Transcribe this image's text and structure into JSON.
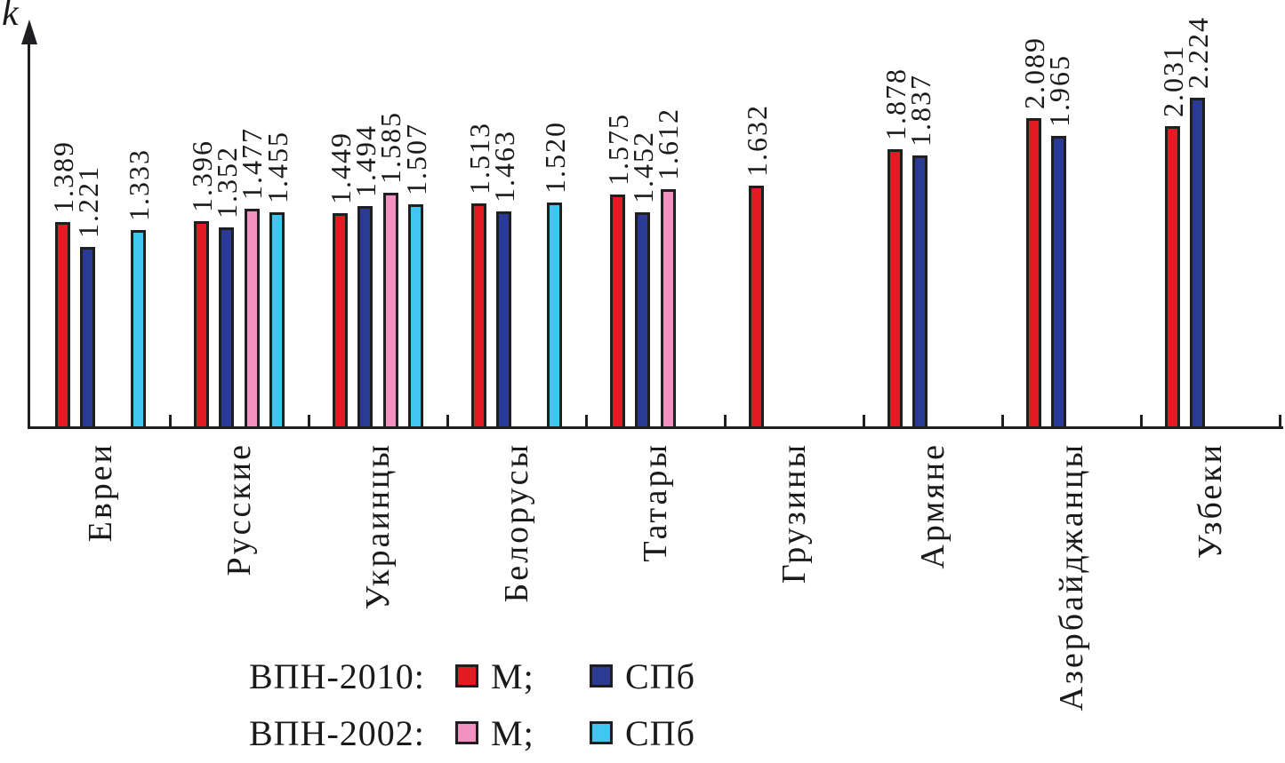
{
  "chart_data": {
    "type": "bar",
    "title": "",
    "axis_label": "k̄",
    "xlabel": "",
    "ylabel": "k̄",
    "ylim": [
      0,
      2.7
    ],
    "grid": false,
    "value_labels": "each bar labeled with its value, rotated 90° CCW above bar, 3 decimals",
    "category_labels_rotation": "90° CCW below axis",
    "categories": [
      "Евреи",
      "Русские",
      "Украинцы",
      "Белорусы",
      "Татары",
      "Грузины",
      "Армяне",
      "Азербайджанцы",
      "Узбеки"
    ],
    "series": [
      {
        "name": "ВПН-2010 М",
        "color": "#e51b24",
        "values": [
          1.389,
          1.396,
          1.449,
          1.513,
          1.575,
          1.632,
          1.878,
          2.089,
          2.031
        ]
      },
      {
        "name": "ВПН-2010 СПб",
        "color": "#2b3a92",
        "values": [
          1.221,
          1.352,
          1.494,
          1.463,
          1.452,
          null,
          1.837,
          1.965,
          2.224
        ]
      },
      {
        "name": "ВПН-2002 М",
        "color": "#f392c0",
        "values": [
          null,
          1.477,
          1.585,
          null,
          1.612,
          null,
          null,
          null,
          null
        ]
      },
      {
        "name": "ВПН-2002 СПб",
        "color": "#41c6f0",
        "values": [
          1.333,
          1.455,
          1.507,
          1.52,
          null,
          null,
          null,
          null,
          null
        ]
      }
    ],
    "legend": {
      "position": "bottom-left",
      "rows": [
        {
          "label": "ВПН-2010:",
          "items": [
            {
              "text": "М;",
              "color": "#e51b24"
            },
            {
              "text": "СПб",
              "color": "#2b3a92"
            }
          ]
        },
        {
          "label": "ВПН-2002:",
          "items": [
            {
              "text": "М;",
              "color": "#f392c0"
            },
            {
              "text": "СПб",
              "color": "#41c6f0"
            }
          ]
        }
      ]
    }
  },
  "colors": {
    "background": "#ffffff",
    "axis": "#1f1f21",
    "bar_outline": "#1f1f21",
    "red_2010_m": "#e51b24",
    "darkblue_2010_spb": "#2b3a92",
    "pink_2002_m": "#f392c0",
    "cyan_2002_spb": "#41c6f0"
  }
}
